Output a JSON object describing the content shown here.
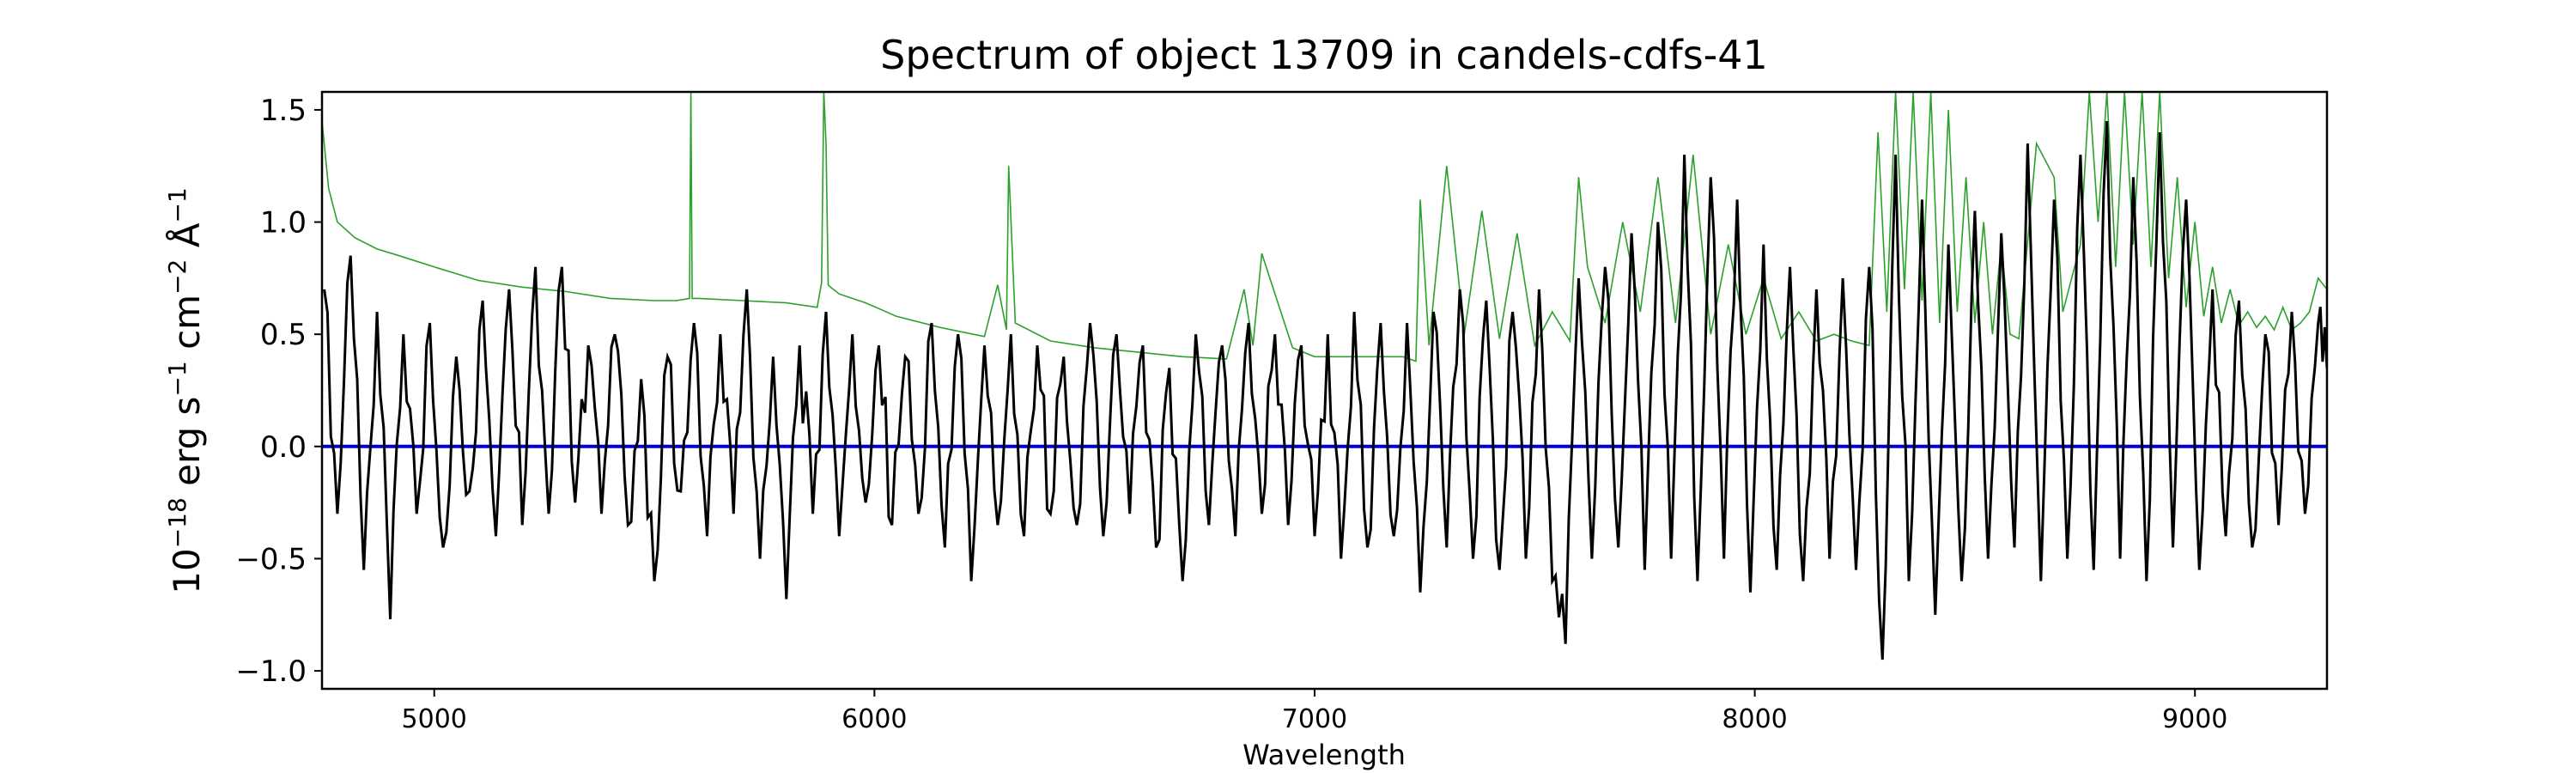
{
  "chart_data": {
    "type": "line",
    "title": "Spectrum of object 13709 in candels-cdfs-41",
    "xlabel": "Wavelength",
    "ylabel": {
      "prefix": "10",
      "prefix_sup": "−18",
      "erg": " erg s",
      "s_sup": "−1",
      "cm": " cm",
      "cm_sup": "−2",
      "ang": " Å",
      "ang_sup": "−1"
    },
    "xlim": [
      4745,
      9300
    ],
    "ylim": [
      -1.08,
      1.58
    ],
    "xticks": [
      5000,
      6000,
      7000,
      8000,
      9000
    ],
    "xtick_labels": [
      "5000",
      "6000",
      "7000",
      "8000",
      "9000"
    ],
    "yticks": [
      -1.0,
      -0.5,
      0.0,
      0.5,
      1.0,
      1.5
    ],
    "ytick_labels": [
      "−1.0",
      "−0.5",
      "0.0",
      "0.5",
      "1.0",
      "1.5"
    ],
    "colors": {
      "flux": "#000000",
      "error": "#2ca02c",
      "zero": "#0000cc"
    },
    "series": [
      {
        "role": "flux",
        "description_color": "black",
        "x": [
          4750,
          4780,
          4810,
          4840,
          4870,
          4900,
          4930,
          4960,
          4990,
          5020,
          5050,
          5080,
          5110,
          5140,
          5170,
          5200,
          5230,
          5260,
          5290,
          5320,
          5350,
          5380,
          5410,
          5440,
          5470,
          5500,
          5530,
          5560,
          5590,
          5620,
          5650,
          5680,
          5710,
          5740,
          5770,
          5800,
          5830,
          5860,
          5890,
          5920,
          5950,
          5980,
          6010,
          6040,
          6070,
          6100,
          6130,
          6160,
          6190,
          6220,
          6250,
          6280,
          6310,
          6340,
          6370,
          6400,
          6430,
          6460,
          6490,
          6520,
          6550,
          6580,
          6610,
          6640,
          6670,
          6700,
          6730,
          6760,
          6790,
          6820,
          6850,
          6880,
          6910,
          6940,
          6970,
          7000,
          7030,
          7060,
          7090,
          7120,
          7150,
          7180,
          7210,
          7240,
          7270,
          7300,
          7330,
          7360,
          7390,
          7420,
          7450,
          7480,
          7510,
          7540,
          7570,
          7600,
          7630,
          7660,
          7690,
          7720,
          7750,
          7780,
          7810,
          7840,
          7870,
          7900,
          7930,
          7960,
          7990,
          8020,
          8050,
          8080,
          8110,
          8140,
          8170,
          8200,
          8230,
          8260,
          8290,
          8320,
          8350,
          8380,
          8410,
          8440,
          8470,
          8500,
          8530,
          8560,
          8590,
          8620,
          8650,
          8680,
          8710,
          8740,
          8770,
          8800,
          8830,
          8860,
          8890,
          8920,
          8950,
          8980,
          9010,
          9040,
          9070,
          9100,
          9130,
          9160,
          9190,
          9220,
          9250,
          9280,
          9300
        ],
        "y": [
          0.7,
          -0.3,
          0.85,
          -0.55,
          0.6,
          -0.77,
          0.5,
          -0.3,
          0.55,
          -0.45,
          0.4,
          -0.2,
          0.65,
          -0.4,
          0.7,
          -0.35,
          0.8,
          -0.3,
          0.8,
          -0.25,
          0.45,
          -0.3,
          0.5,
          -0.35,
          0.3,
          -0.6,
          0.4,
          -0.2,
          0.55,
          -0.4,
          0.5,
          -0.3,
          0.7,
          -0.5,
          0.4,
          -0.68,
          0.45,
          -0.3,
          0.6,
          -0.4,
          0.5,
          -0.25,
          0.45,
          -0.35,
          0.4,
          -0.3,
          0.55,
          -0.45,
          0.5,
          -0.6,
          0.45,
          -0.35,
          0.5,
          -0.4,
          0.45,
          -0.3,
          0.4,
          -0.35,
          0.55,
          -0.4,
          0.5,
          -0.3,
          0.45,
          -0.45,
          0.35,
          -0.6,
          0.5,
          -0.35,
          0.45,
          -0.4,
          0.55,
          -0.3,
          0.5,
          -0.35,
          0.45,
          -0.4,
          0.5,
          -0.5,
          0.6,
          -0.45,
          0.55,
          -0.4,
          0.55,
          -0.65,
          0.6,
          -0.45,
          0.7,
          -0.5,
          0.65,
          -0.55,
          0.6,
          -0.5,
          0.7,
          -0.6,
          -0.88,
          0.75,
          -0.5,
          0.8,
          -0.45,
          0.95,
          -0.55,
          1.0,
          -0.5,
          1.3,
          -0.6,
          1.2,
          -0.5,
          1.1,
          -0.65,
          0.9,
          -0.55,
          0.8,
          -0.6,
          0.7,
          -0.5,
          0.75,
          -0.55,
          0.8,
          -0.95,
          1.3,
          -0.6,
          1.1,
          -0.75,
          0.9,
          -0.6,
          1.05,
          -0.5,
          0.95,
          -0.45,
          1.35,
          -0.6,
          1.1,
          -0.5,
          1.3,
          -0.55,
          1.45,
          -0.5,
          1.2,
          -0.6,
          1.4,
          -0.45,
          1.1,
          -0.55,
          0.7,
          -0.4,
          0.65,
          -0.45,
          0.5,
          -0.35,
          0.6,
          -0.3,
          0.55,
          0.35
        ]
      },
      {
        "role": "error",
        "description_color": "green",
        "x": [
          4745,
          4760,
          4780,
          4820,
          4870,
          4920,
          5000,
          5100,
          5200,
          5300,
          5400,
          5500,
          5550,
          5580,
          5583,
          5586,
          5600,
          5700,
          5800,
          5870,
          5880,
          5885,
          5890,
          5895,
          5900,
          5920,
          5980,
          6050,
          6150,
          6250,
          6280,
          6300,
          6305,
          6320,
          6400,
          6500,
          6600,
          6700,
          6800,
          6840,
          6860,
          6880,
          6950,
          7000,
          7100,
          7200,
          7230,
          7240,
          7260,
          7300,
          7340,
          7380,
          7420,
          7460,
          7500,
          7540,
          7580,
          7600,
          7620,
          7660,
          7700,
          7740,
          7780,
          7820,
          7860,
          7900,
          7940,
          7980,
          8020,
          8060,
          8100,
          8140,
          8180,
          8220,
          8260,
          8280,
          8300,
          8320,
          8340,
          8360,
          8380,
          8400,
          8420,
          8440,
          8460,
          8480,
          8500,
          8520,
          8540,
          8560,
          8580,
          8600,
          8640,
          8680,
          8700,
          8740,
          8760,
          8780,
          8800,
          8820,
          8840,
          8860,
          8880,
          8900,
          8920,
          8940,
          8960,
          8980,
          9000,
          9020,
          9040,
          9060,
          9080,
          9100,
          9120,
          9140,
          9160,
          9180,
          9200,
          9220,
          9240,
          9260,
          9280,
          9300
        ],
        "y": [
          1.45,
          1.15,
          1.0,
          0.93,
          0.88,
          0.85,
          0.8,
          0.74,
          0.71,
          0.69,
          0.66,
          0.65,
          0.65,
          0.66,
          1.58,
          0.66,
          0.66,
          0.65,
          0.64,
          0.62,
          0.73,
          1.58,
          1.35,
          0.72,
          0.71,
          0.68,
          0.64,
          0.58,
          0.53,
          0.49,
          0.72,
          0.52,
          1.25,
          0.55,
          0.47,
          0.44,
          0.42,
          0.4,
          0.39,
          0.7,
          0.45,
          0.86,
          0.44,
          0.4,
          0.4,
          0.4,
          0.38,
          1.1,
          0.45,
          1.25,
          0.5,
          1.05,
          0.48,
          0.95,
          0.45,
          0.6,
          0.47,
          1.2,
          0.8,
          0.55,
          1.0,
          0.6,
          1.2,
          0.55,
          1.3,
          0.5,
          0.9,
          0.5,
          0.75,
          0.48,
          0.6,
          0.47,
          0.5,
          0.47,
          0.45,
          1.4,
          0.6,
          1.58,
          0.7,
          1.58,
          0.65,
          1.58,
          0.55,
          1.5,
          0.6,
          1.2,
          0.55,
          1.0,
          0.5,
          0.9,
          0.5,
          0.48,
          1.35,
          1.2,
          0.6,
          0.9,
          1.58,
          1.0,
          1.58,
          0.8,
          1.58,
          0.9,
          1.58,
          0.8,
          1.58,
          0.75,
          1.2,
          0.62,
          1.0,
          0.58,
          0.8,
          0.55,
          0.7,
          0.54,
          0.6,
          0.53,
          0.58,
          0.52,
          0.62,
          0.52,
          0.55,
          0.6,
          0.75,
          0.7
        ]
      },
      {
        "role": "zero",
        "description_color": "blue",
        "x": [
          4745,
          9300
        ],
        "y": [
          0.0,
          0.0
        ]
      }
    ],
    "legend": "none",
    "grid": false
  }
}
